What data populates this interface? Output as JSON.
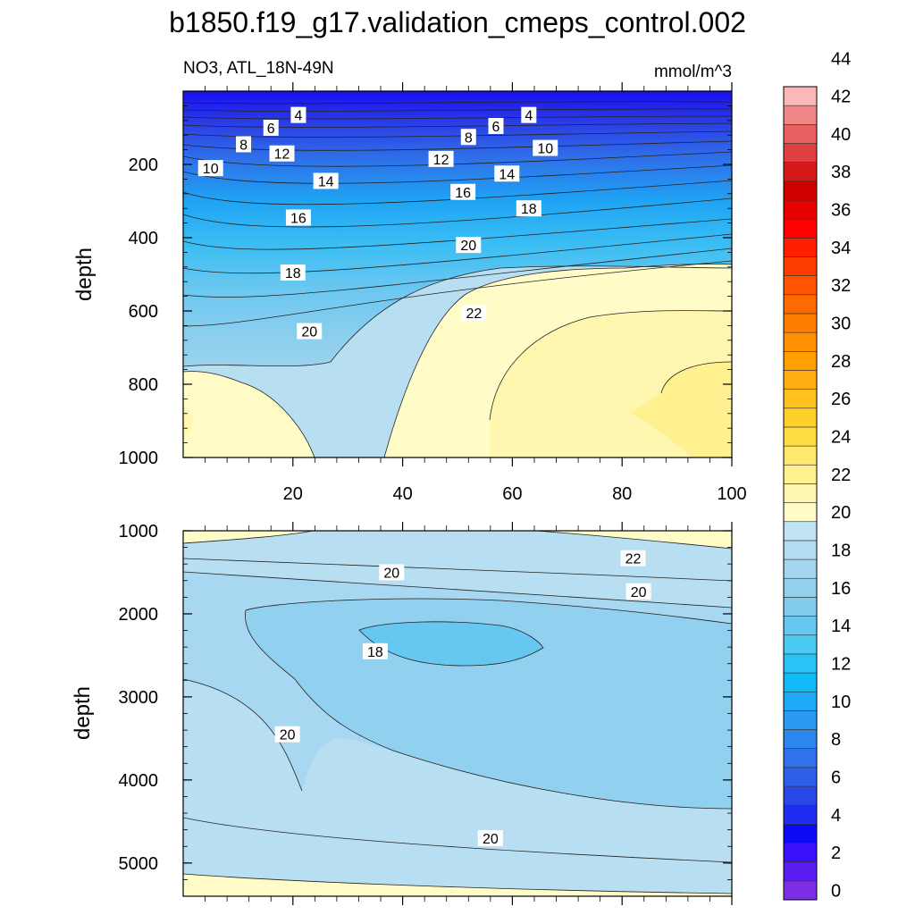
{
  "title": "b1850.f19_g17.validation_cmeps_control.002",
  "chart_data": {
    "type": "contour",
    "variable_label": "NO3, ATL_18N-49N",
    "units": "mmol/m^3",
    "colorbar": {
      "levels": [
        0,
        2,
        4,
        6,
        8,
        10,
        12,
        14,
        16,
        18,
        20,
        22,
        24,
        26,
        28,
        30,
        32,
        34,
        36,
        38,
        40,
        42,
        44
      ],
      "tick_labels": [
        "0",
        "2",
        "4",
        "6",
        "8",
        "10",
        "12",
        "14",
        "16",
        "18",
        "20",
        "22",
        "24",
        "26",
        "28",
        "30",
        "32",
        "34",
        "36",
        "38",
        "40",
        "42",
        "44"
      ],
      "colors": [
        "#7b2ee3",
        "#5a1cf0",
        "#3a10f8",
        "#0a0af5",
        "#1e2ef0",
        "#2a48e8",
        "#2f5fe6",
        "#2f73ea",
        "#2d86ee",
        "#2a9af2",
        "#1eaaf6",
        "#12bbf8",
        "#2bc2f5",
        "#4ccaf2",
        "#66c7f0",
        "#80cbee",
        "#92d0ee",
        "#a4d6ef",
        "#b3dcf1",
        "#c2e3f4",
        "#fffcc8",
        "#fff7b0",
        "#fff090",
        "#ffe870",
        "#ffdd45",
        "#ffcf2a",
        "#ffc020",
        "#ffb010",
        "#ffa000",
        "#ff9000",
        "#ff7e00",
        "#ff6a00",
        "#ff5400",
        "#ff3c00",
        "#ff2000",
        "#ff0000",
        "#e80000",
        "#d00000",
        "#d61a1a",
        "#e04040",
        "#e86060",
        "#f08888",
        "#fab8b8"
      ]
    },
    "top_panel": {
      "ylabel": "depth",
      "y_range": [
        0,
        1000
      ],
      "x_range": [
        0,
        100
      ],
      "y_ticks": [
        200,
        400,
        600,
        800,
        1000
      ],
      "x_ticks": [
        20,
        40,
        60,
        80,
        100
      ],
      "contour_labels": [
        {
          "text": "4",
          "x": 21,
          "y": 65
        },
        {
          "text": "6",
          "x": 16,
          "y": 100
        },
        {
          "text": "8",
          "x": 11,
          "y": 145
        },
        {
          "text": "10",
          "x": 5,
          "y": 210
        },
        {
          "text": "12",
          "x": 18,
          "y": 170
        },
        {
          "text": "14",
          "x": 26,
          "y": 245
        },
        {
          "text": "16",
          "x": 21,
          "y": 345
        },
        {
          "text": "18",
          "x": 20,
          "y": 495
        },
        {
          "text": "20",
          "x": 23,
          "y": 655
        },
        {
          "text": "12",
          "x": 47,
          "y": 185
        },
        {
          "text": "8",
          "x": 52,
          "y": 125
        },
        {
          "text": "6",
          "x": 57,
          "y": 95
        },
        {
          "text": "4",
          "x": 63,
          "y": 65
        },
        {
          "text": "10",
          "x": 66,
          "y": 155
        },
        {
          "text": "14",
          "x": 59,
          "y": 225
        },
        {
          "text": "16",
          "x": 51,
          "y": 275
        },
        {
          "text": "18",
          "x": 63,
          "y": 320
        },
        {
          "text": "20",
          "x": 52,
          "y": 420
        },
        {
          "text": "22",
          "x": 53,
          "y": 605
        }
      ]
    },
    "bottom_panel": {
      "ylabel": "depth",
      "y_range": [
        1000,
        5400
      ],
      "x_range": [
        0,
        100
      ],
      "y_ticks": [
        1000,
        2000,
        3000,
        4000,
        5000
      ],
      "contour_labels": [
        {
          "text": "20",
          "x": 38,
          "y": 1500
        },
        {
          "text": "22",
          "x": 82,
          "y": 1330
        },
        {
          "text": "20",
          "x": 83,
          "y": 1730
        },
        {
          "text": "18",
          "x": 35,
          "y": 2450
        },
        {
          "text": "20",
          "x": 19,
          "y": 3450
        },
        {
          "text": "20",
          "x": 56,
          "y": 4700
        }
      ]
    }
  }
}
